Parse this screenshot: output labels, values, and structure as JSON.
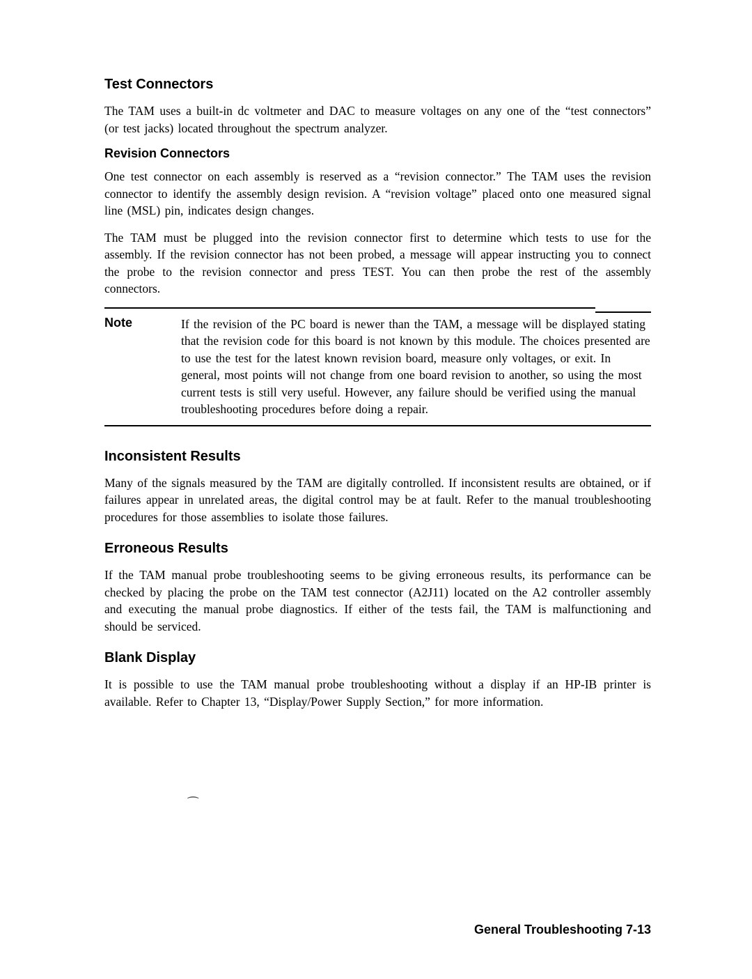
{
  "sections": {
    "testConnectors": {
      "heading": "Test Connectors",
      "para1": "The TAM uses a built-in dc voltmeter and DAC to measure voltages on any one of the “test connectors” (or test jacks) located throughout the spectrum analyzer."
    },
    "revisionConnectors": {
      "heading": "Revision Connectors",
      "para1": "One test connector on each assembly is reserved as a “revision connector.” The TAM uses the revision connector to identify the assembly design revision. A “revision voltage” placed onto one measured signal line (MSL) pin, indicates design changes.",
      "para2": "The TAM must be plugged into the revision connector first to determine which tests to use for the assembly. If the revision connector has not been probed, a message will appear instructing you to connect the probe to the revision connector and press TEST. You can then probe the rest of the assembly connectors."
    },
    "note": {
      "label": "Note",
      "text": "If the revision of the PC board is newer than the TAM, a message will be displayed stating that the revision code for this board is not known by this module. The choices presented are to use the test for the latest known revision board, measure only voltages, or exit. In general, most points will not change from one board revision to another, so using the most current tests is still very useful. However, any failure should be verified using the manual troubleshooting procedures before doing a repair."
    },
    "inconsistentResults": {
      "heading": "Inconsistent Results",
      "para1": "Many of the signals measured by the TAM are digitally controlled. If inconsistent results are obtained, or if failures appear in unrelated areas, the digital control may be at fault. Refer to the manual troubleshooting procedures for those assemblies to isolate those failures."
    },
    "erroneousResults": {
      "heading": "Erroneous Results",
      "para1_pre": "If the TAM manual probe troubleshooting seems to be giving erroneous results, its performance can be checked by placing the probe on the TAM test connector ",
      "connector": "(A2J11)",
      "para1_post": " located on the A2 controller assembly and executing the manual probe diagnostics. If either of the tests fail, the TAM is malfunctioning and should be serviced."
    },
    "blankDisplay": {
      "heading": "Blank Display",
      "para1": "It is possible to use the TAM manual probe troubleshooting without a display if an HP-IB printer is available. Refer to Chapter 13, “Display/Power Supply Section,” for more information."
    }
  },
  "footer": "General Troubleshooting 7-13",
  "tilde": "⁀"
}
